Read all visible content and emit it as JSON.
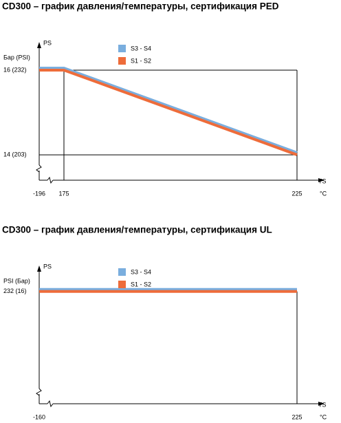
{
  "chart_data": [
    {
      "type": "line",
      "title": "CD300 – график давления/температуры, сертификация PED",
      "y_label": "PS",
      "y_unit_label": "Бар (PSI)",
      "x_label": "TS",
      "x_unit_label": "°C",
      "x": [
        -196,
        175,
        225
      ],
      "xlim": [
        -196,
        225
      ],
      "xticks": [
        -196,
        175,
        225
      ],
      "ylim": [
        13.4,
        16.6
      ],
      "yticks": [
        {
          "value": 16,
          "label": "16  (232)"
        },
        {
          "value": 14,
          "label": "14  (203)"
        }
      ],
      "axis_break": true,
      "grid": true,
      "series": [
        {
          "name": "S3 - S4",
          "color": "#7aaede",
          "values": [
            16,
            16,
            14
          ]
        },
        {
          "name": "S1 - S2",
          "color": "#ee6c3a",
          "values": [
            16,
            16,
            14
          ]
        }
      ]
    },
    {
      "type": "line",
      "title": "CD300 – график давления/температуры, сертификация UL",
      "y_label": "PS",
      "y_unit_label": "PSI (Бар)",
      "x_label": "TS",
      "x_unit_label": "°C",
      "x": [
        -160,
        225
      ],
      "xlim": [
        -160,
        225
      ],
      "xticks": [
        -160,
        225
      ],
      "ylim": [
        0,
        280
      ],
      "yticks": [
        {
          "value": 232,
          "label": "232 (16)"
        }
      ],
      "axis_break": true,
      "grid": true,
      "series": [
        {
          "name": "S3 - S4",
          "color": "#7aaede",
          "values": [
            232,
            232
          ]
        },
        {
          "name": "S1 - S2",
          "color": "#ee6c3a",
          "values": [
            232,
            232
          ]
        }
      ]
    }
  ]
}
